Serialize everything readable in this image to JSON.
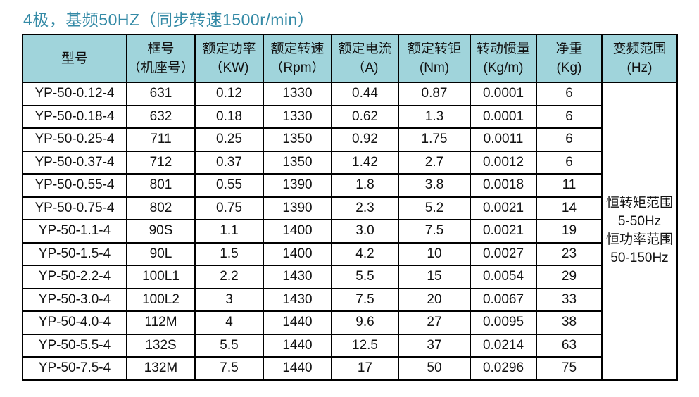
{
  "title": "4极，基频50HZ（同步转速1500r/min）",
  "colors": {
    "title_text": "#348aa6",
    "header_bg": "#a0d4db",
    "grid_border": "#000000",
    "cell_text": "#111111"
  },
  "table": {
    "columns": [
      {
        "id": "model",
        "line1": "型号",
        "line2": ""
      },
      {
        "id": "frame",
        "line1": "框号",
        "line2": "（机座号）"
      },
      {
        "id": "power",
        "line1": "额定功率",
        "line2": "（KW)"
      },
      {
        "id": "speed",
        "line1": "额定转速",
        "line2": "（Rpm）"
      },
      {
        "id": "current",
        "line1": "额定电流",
        "line2": "（A)"
      },
      {
        "id": "torque",
        "line1": "额定转钜",
        "line2": "(Nm)"
      },
      {
        "id": "inertia",
        "line1": "转动惯量",
        "line2": "(Kg/m)"
      },
      {
        "id": "weight",
        "line1": "净重",
        "line2": "(Kg)"
      },
      {
        "id": "freq_range",
        "line1": "变频范围",
        "line2": "(Hz)"
      }
    ],
    "rows": [
      [
        "YP-50-0.12-4",
        "631",
        "0.12",
        "1330",
        "0.44",
        "0.87",
        "0.0001",
        "6"
      ],
      [
        "YP-50-0.18-4",
        "632",
        "0.18",
        "1330",
        "0.62",
        "1.3",
        "0.0001",
        "6"
      ],
      [
        "YP-50-0.25-4",
        "711",
        "0.25",
        "1350",
        "0.92",
        "1.75",
        "0.0011",
        "6"
      ],
      [
        "YP-50-0.37-4",
        "712",
        "0.37",
        "1350",
        "1.42",
        "2.7",
        "0.0012",
        "6"
      ],
      [
        "YP-50-0.55-4",
        "801",
        "0.55",
        "1390",
        "1.8",
        "3.8",
        "0.0018",
        "11"
      ],
      [
        "YP-50-0.75-4",
        "802",
        "0.75",
        "1390",
        "2.3",
        "5.2",
        "0.0021",
        "14"
      ],
      [
        "YP-50-1.1-4",
        "90S",
        "1.1",
        "1400",
        "3.0",
        "7.5",
        "0.0021",
        "19"
      ],
      [
        "YP-50-1.5-4",
        "90L",
        "1.5",
        "1400",
        "4.2",
        "10",
        "0.0027",
        "23"
      ],
      [
        "YP-50-2.2-4",
        "100L1",
        "2.2",
        "1430",
        "5.5",
        "15",
        "0.0054",
        "29"
      ],
      [
        "YP-50-3.0-4",
        "100L2",
        "3",
        "1430",
        "7.5",
        "20",
        "0.0067",
        "33"
      ],
      [
        "YP-50-4.0-4",
        "112M",
        "4",
        "1440",
        "9.6",
        "27",
        "0.0095",
        "38"
      ],
      [
        "YP-50-5.5-4",
        "132S",
        "5.5",
        "1440",
        "12.5",
        "37",
        "0.0214",
        "63"
      ],
      [
        "YP-50-7.5-4",
        "132M",
        "7.5",
        "1440",
        "17",
        "50",
        "0.0296",
        "75"
      ]
    ],
    "freq_note_lines": [
      "恒转矩范围",
      "5-50Hz",
      "恒功率范围",
      "50-150Hz"
    ]
  }
}
